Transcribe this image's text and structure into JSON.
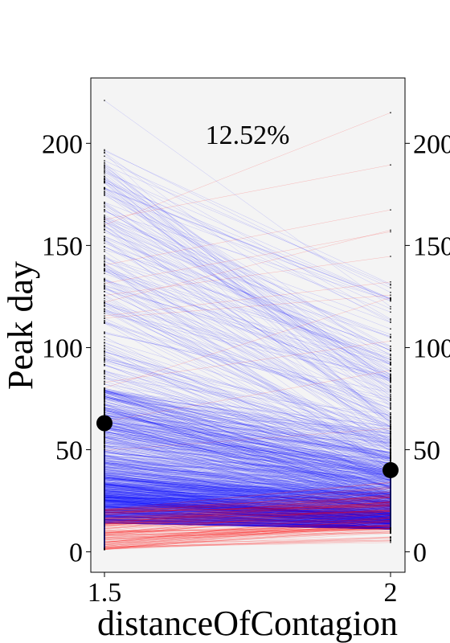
{
  "chart_data": {
    "type": "line",
    "subtype": "slope-chart",
    "xlabel": "distanceOfContagion",
    "ylabel": "Peak day",
    "x_ticks": [
      "1.5",
      "2"
    ],
    "y_ticks": [
      0,
      50,
      100,
      150,
      200
    ],
    "right_y_ticks": [
      "0",
      "50",
      "100",
      "150",
      "200"
    ],
    "ylim": [
      -10,
      232
    ],
    "annotation": "12.52%",
    "line_count": 1400,
    "increasing_fraction": 0.1252,
    "means": [
      {
        "x": "1.5",
        "y": 63
      },
      {
        "x": "2",
        "y": 40
      }
    ],
    "max_points": [
      {
        "x": "1.5",
        "y": 221
      },
      {
        "x": "2",
        "y": 215
      }
    ],
    "colors": {
      "decreasing_line": "#0000ff",
      "increasing_line": "#ff0000",
      "plot_background": "#f4f4f4",
      "mean_marker": "#000000"
    },
    "grid": false
  }
}
